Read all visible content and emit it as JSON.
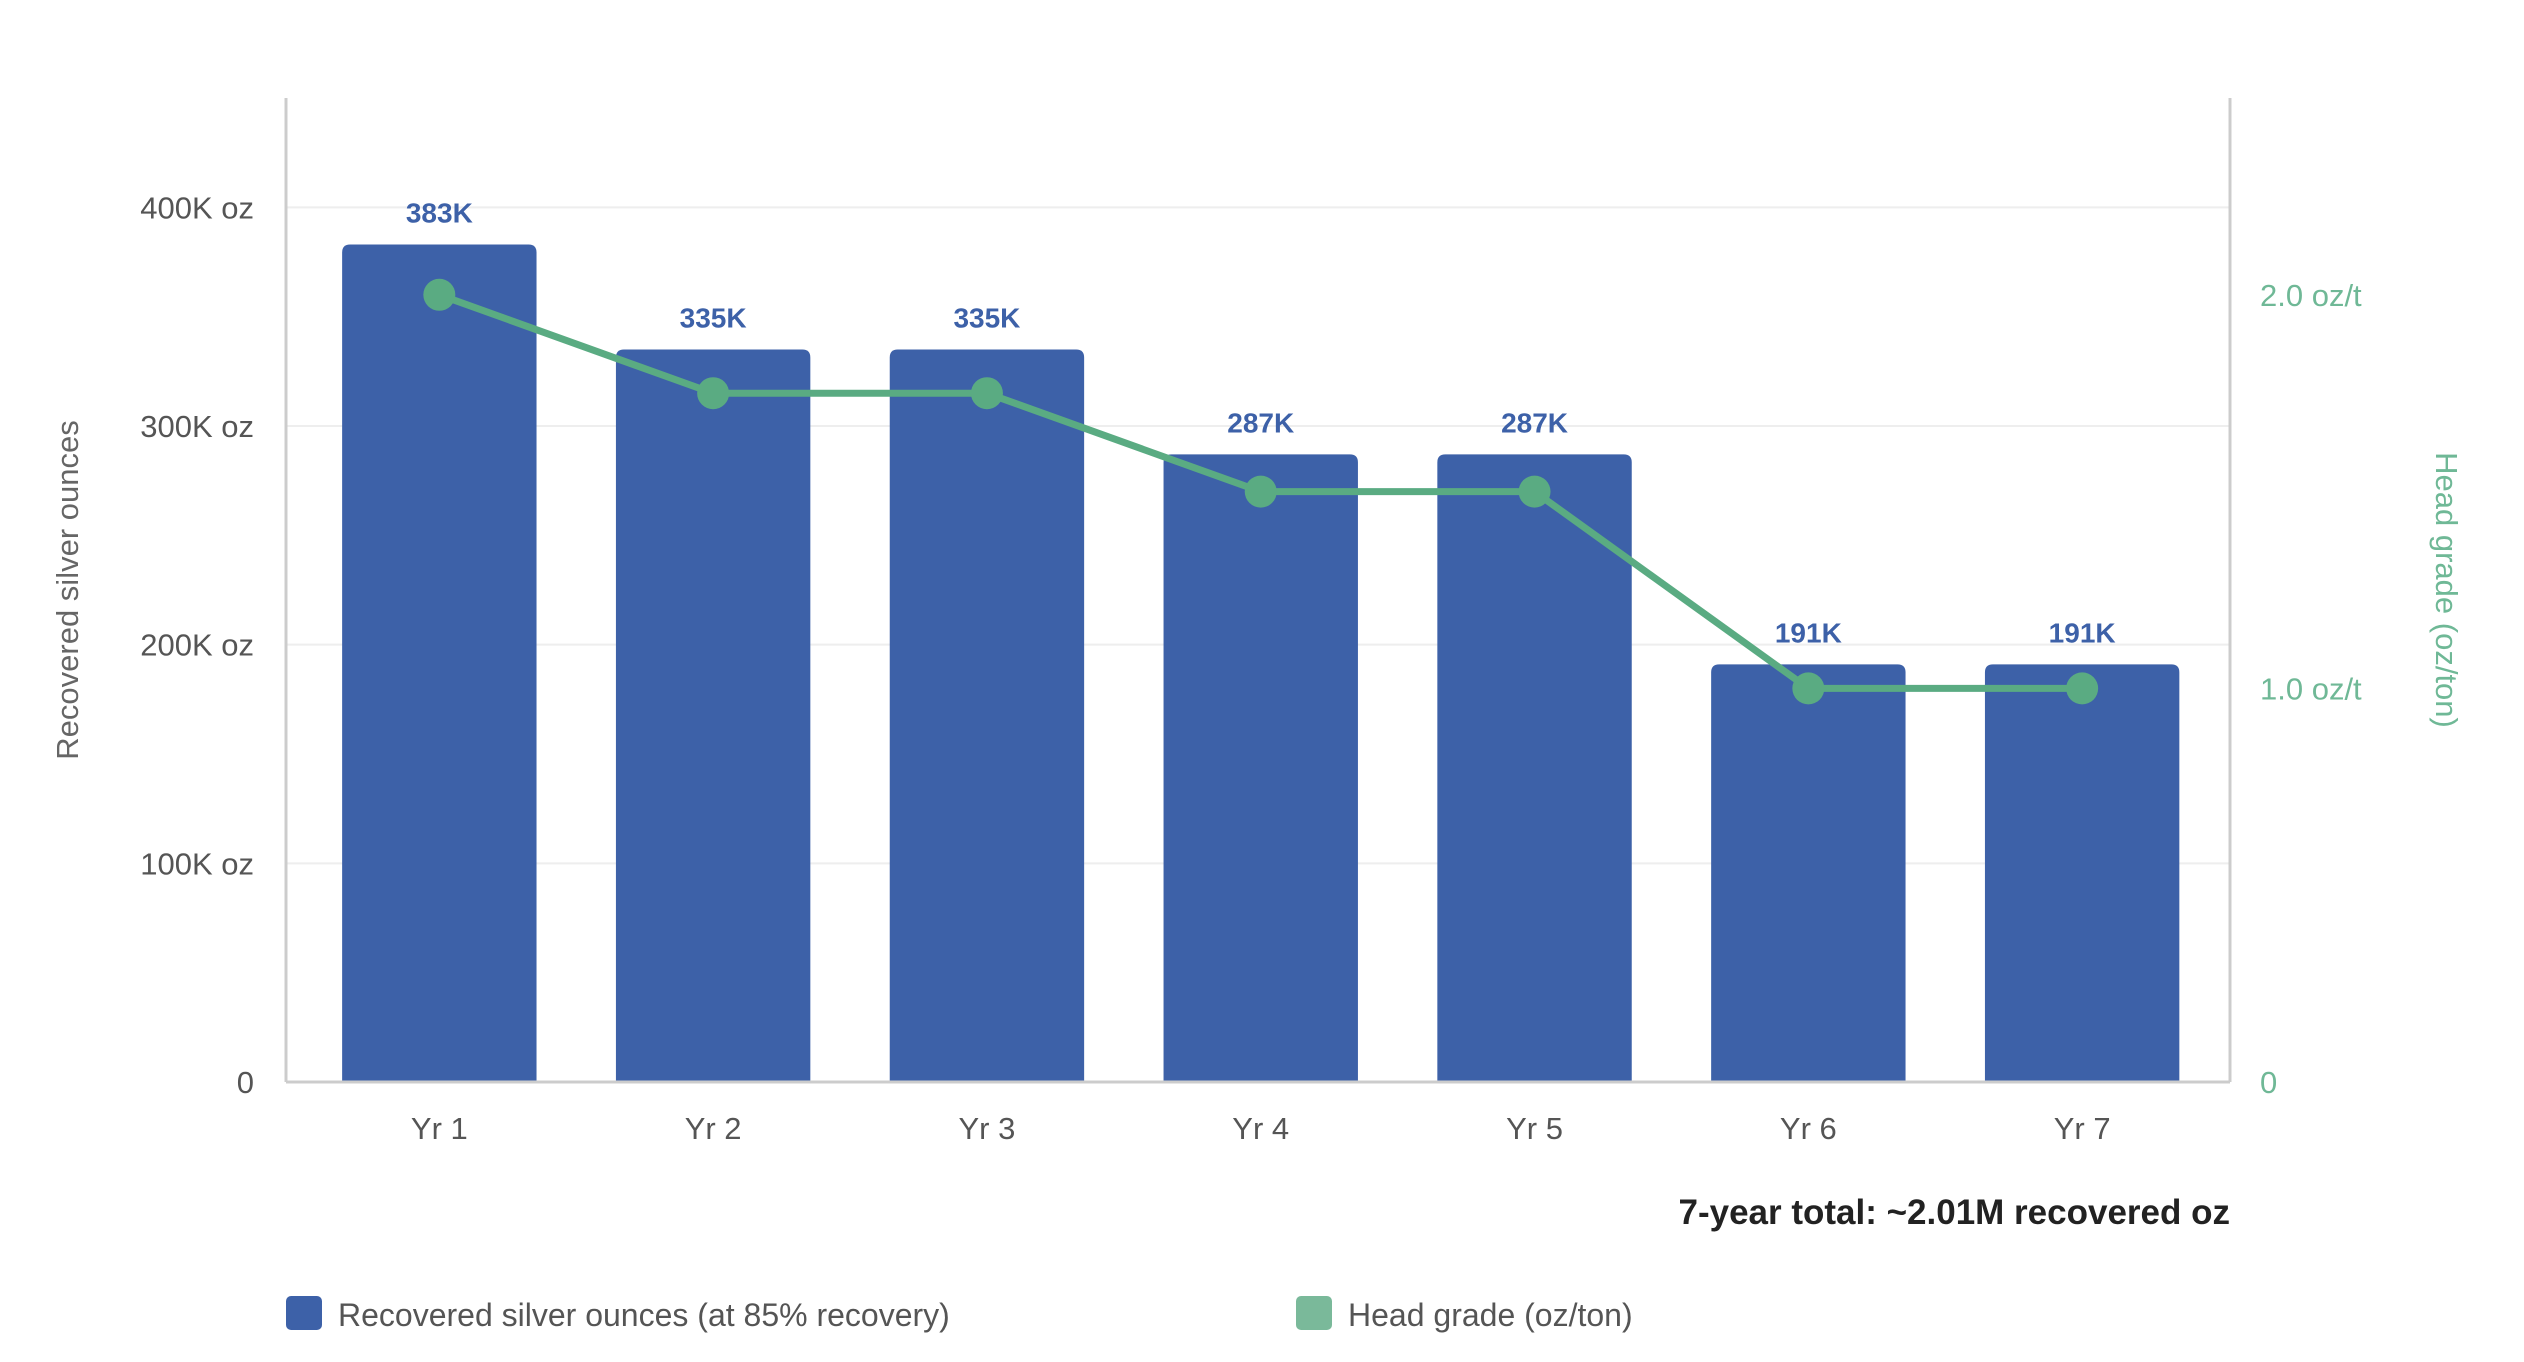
{
  "chart_data": {
    "type": "bar",
    "title": "",
    "categories": [
      "Yr 1",
      "Yr 2",
      "Yr 3",
      "Yr 4",
      "Yr 5",
      "Yr 6",
      "Yr 7"
    ],
    "series": [
      {
        "name": "Recovered silver ounces (at 85% recovery)",
        "type": "bar",
        "axis": "left",
        "values": [
          383000,
          335000,
          335000,
          287000,
          287000,
          191000,
          191000
        ],
        "labels": [
          "383K",
          "335K",
          "335K",
          "287K",
          "287K",
          "191K",
          "191K"
        ],
        "color": "#3d61a8"
      },
      {
        "name": "Head grade (oz/ton)",
        "type": "line",
        "axis": "right",
        "values": [
          2.0,
          1.75,
          1.75,
          1.5,
          1.5,
          1.0,
          1.0
        ],
        "color": "#5aab82"
      }
    ],
    "ylabel": "Recovered silver ounces",
    "ylim": [
      0,
      450000
    ],
    "yticks": [
      {
        "value": 0,
        "label": "0"
      },
      {
        "value": 100000,
        "label": "100K oz"
      },
      {
        "value": 200000,
        "label": "200K oz"
      },
      {
        "value": 300000,
        "label": "300K oz"
      },
      {
        "value": 400000,
        "label": "400K oz"
      }
    ],
    "y2label": "Head grade (oz/ton)",
    "y2lim": [
      0,
      2.5
    ],
    "y2ticks": [
      {
        "value": 0,
        "label": "0"
      },
      {
        "value": 1.0,
        "label": "1.0 oz/t"
      },
      {
        "value": 2.0,
        "label": "2.0 oz/t"
      }
    ],
    "annotation": "7-year total: ~2.01M recovered oz",
    "legend": {
      "position": "bottom-left",
      "items": [
        {
          "label": "Recovered silver ounces (at 85% recovery)",
          "color": "#3d61a8"
        },
        {
          "label": "Head grade (oz/ton)",
          "color": "#7ab99a"
        }
      ]
    },
    "grid": true
  }
}
